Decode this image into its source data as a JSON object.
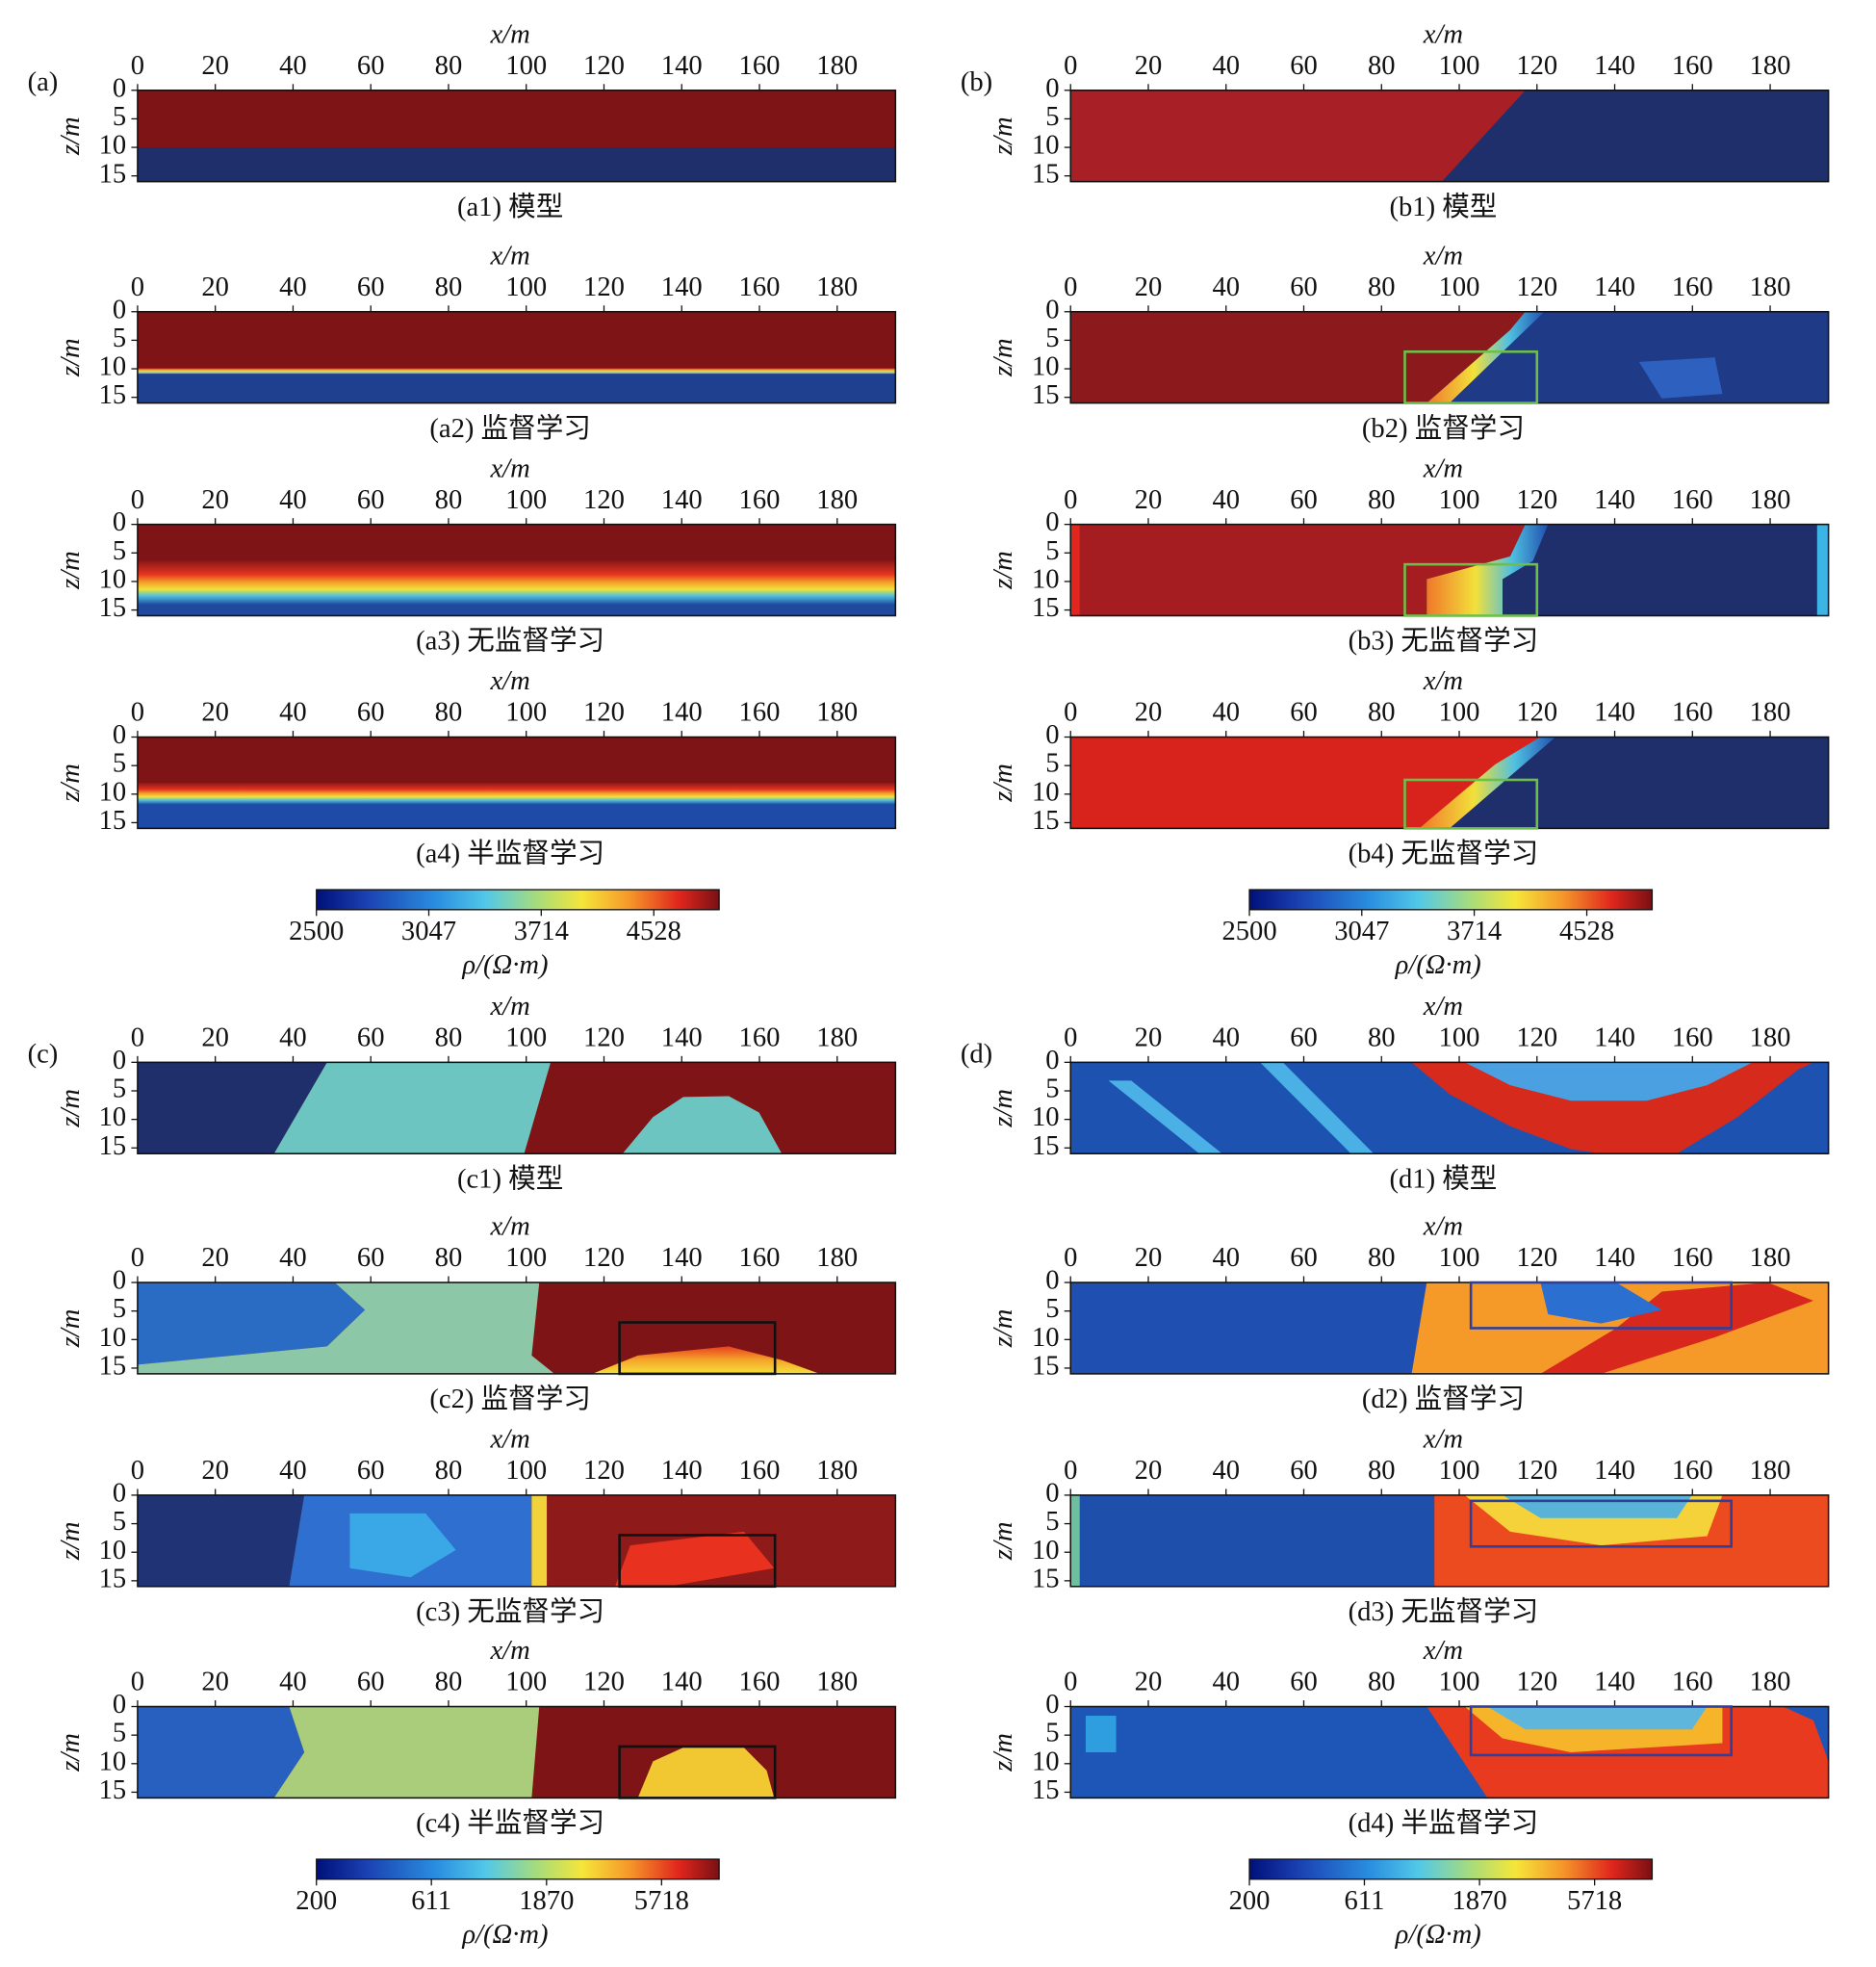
{
  "chart_data": [
    {
      "type": "heatmap",
      "panel_label": "(a)",
      "xlabel": "x/m",
      "ylabel": "z/m",
      "xlim": [
        0,
        195
      ],
      "ylim": [
        0,
        16
      ],
      "y_inverted": true,
      "xticks": [
        0,
        20,
        40,
        60,
        80,
        100,
        120,
        140,
        160,
        180
      ],
      "yticks": [
        0,
        5,
        10,
        15
      ],
      "subplots": [
        {
          "caption": "(a1) 模型"
        },
        {
          "caption": "(a2) 监督学习"
        },
        {
          "caption": "(a3) 无监督学习"
        },
        {
          "caption": "(a4) 半监督学习"
        }
      ],
      "colorbar": {
        "label": "ρ/(Ω·m)",
        "clim": [
          2500,
          5080
        ],
        "log": true,
        "ticks": [
          2500,
          3047,
          3714,
          4528
        ]
      }
    },
    {
      "type": "heatmap",
      "panel_label": "(b)",
      "xlabel": "x/m",
      "ylabel": "z/m",
      "xlim": [
        0,
        195
      ],
      "ylim": [
        0,
        16
      ],
      "y_inverted": true,
      "xticks": [
        0,
        20,
        40,
        60,
        80,
        100,
        120,
        140,
        160,
        180
      ],
      "yticks": [
        0,
        5,
        10,
        15
      ],
      "box_color": "#6dbf4b",
      "subplots": [
        {
          "caption": "(b1) 模型"
        },
        {
          "caption": "(b2) 监督学习",
          "box": {
            "x": [
              86,
              120
            ],
            "z": [
              7,
              16
            ]
          }
        },
        {
          "caption": "(b3) 无监督学习",
          "box": {
            "x": [
              86,
              120
            ],
            "z": [
              7,
              16
            ]
          }
        },
        {
          "caption": "(b4) 无监督学习",
          "box": {
            "x": [
              86,
              120
            ],
            "z": [
              7.5,
              16
            ]
          }
        }
      ],
      "colorbar": {
        "label": "ρ/(Ω·m)",
        "clim": [
          2500,
          5080
        ],
        "log": true,
        "ticks": [
          2500,
          3047,
          3714,
          4528
        ]
      }
    },
    {
      "type": "heatmap",
      "panel_label": "(c)",
      "xlabel": "x/m",
      "ylabel": "z/m",
      "xlim": [
        0,
        195
      ],
      "ylim": [
        0,
        16
      ],
      "y_inverted": true,
      "xticks": [
        0,
        20,
        40,
        60,
        80,
        100,
        120,
        140,
        160,
        180
      ],
      "yticks": [
        0,
        5,
        10,
        15
      ],
      "box_color": "#111111",
      "subplots": [
        {
          "caption": "(c1) 模型"
        },
        {
          "caption": "(c2) 监督学习",
          "box": {
            "x": [
              124,
              164
            ],
            "z": [
              7,
              16
            ]
          }
        },
        {
          "caption": "(c3) 无监督学习",
          "box": {
            "x": [
              124,
              164
            ],
            "z": [
              7,
              16
            ]
          }
        },
        {
          "caption": "(c4) 半监督学习",
          "box": {
            "x": [
              124,
              164
            ],
            "z": [
              7,
              16
            ]
          }
        }
      ],
      "colorbar": {
        "label": "ρ/(Ω·m)",
        "clim": [
          200,
          10000
        ],
        "log": true,
        "ticks": [
          200,
          611,
          1870,
          5718
        ]
      }
    },
    {
      "type": "heatmap",
      "panel_label": "(d)",
      "xlabel": "x/m",
      "ylabel": "z/m",
      "xlim": [
        0,
        195
      ],
      "ylim": [
        0,
        16
      ],
      "y_inverted": true,
      "xticks": [
        0,
        20,
        40,
        60,
        80,
        100,
        120,
        140,
        160,
        180
      ],
      "yticks": [
        0,
        5,
        10,
        15
      ],
      "box_color": "#2f3f9a",
      "subplots": [
        {
          "caption": "(d1) 模型"
        },
        {
          "caption": "(d2) 监督学习",
          "box": {
            "x": [
              103,
              170
            ],
            "z": [
              0,
              8
            ]
          }
        },
        {
          "caption": "(d3) 无监督学习",
          "box": {
            "x": [
              103,
              170
            ],
            "z": [
              1,
              9
            ]
          }
        },
        {
          "caption": "(d4) 半监督学习",
          "box": {
            "x": [
              103,
              170
            ],
            "z": [
              0,
              8.5
            ]
          }
        }
      ],
      "colorbar": {
        "label": "ρ/(Ω·m)",
        "clim": [
          200,
          10000
        ],
        "log": true,
        "ticks": [
          200,
          611,
          1870,
          5718
        ]
      }
    }
  ]
}
